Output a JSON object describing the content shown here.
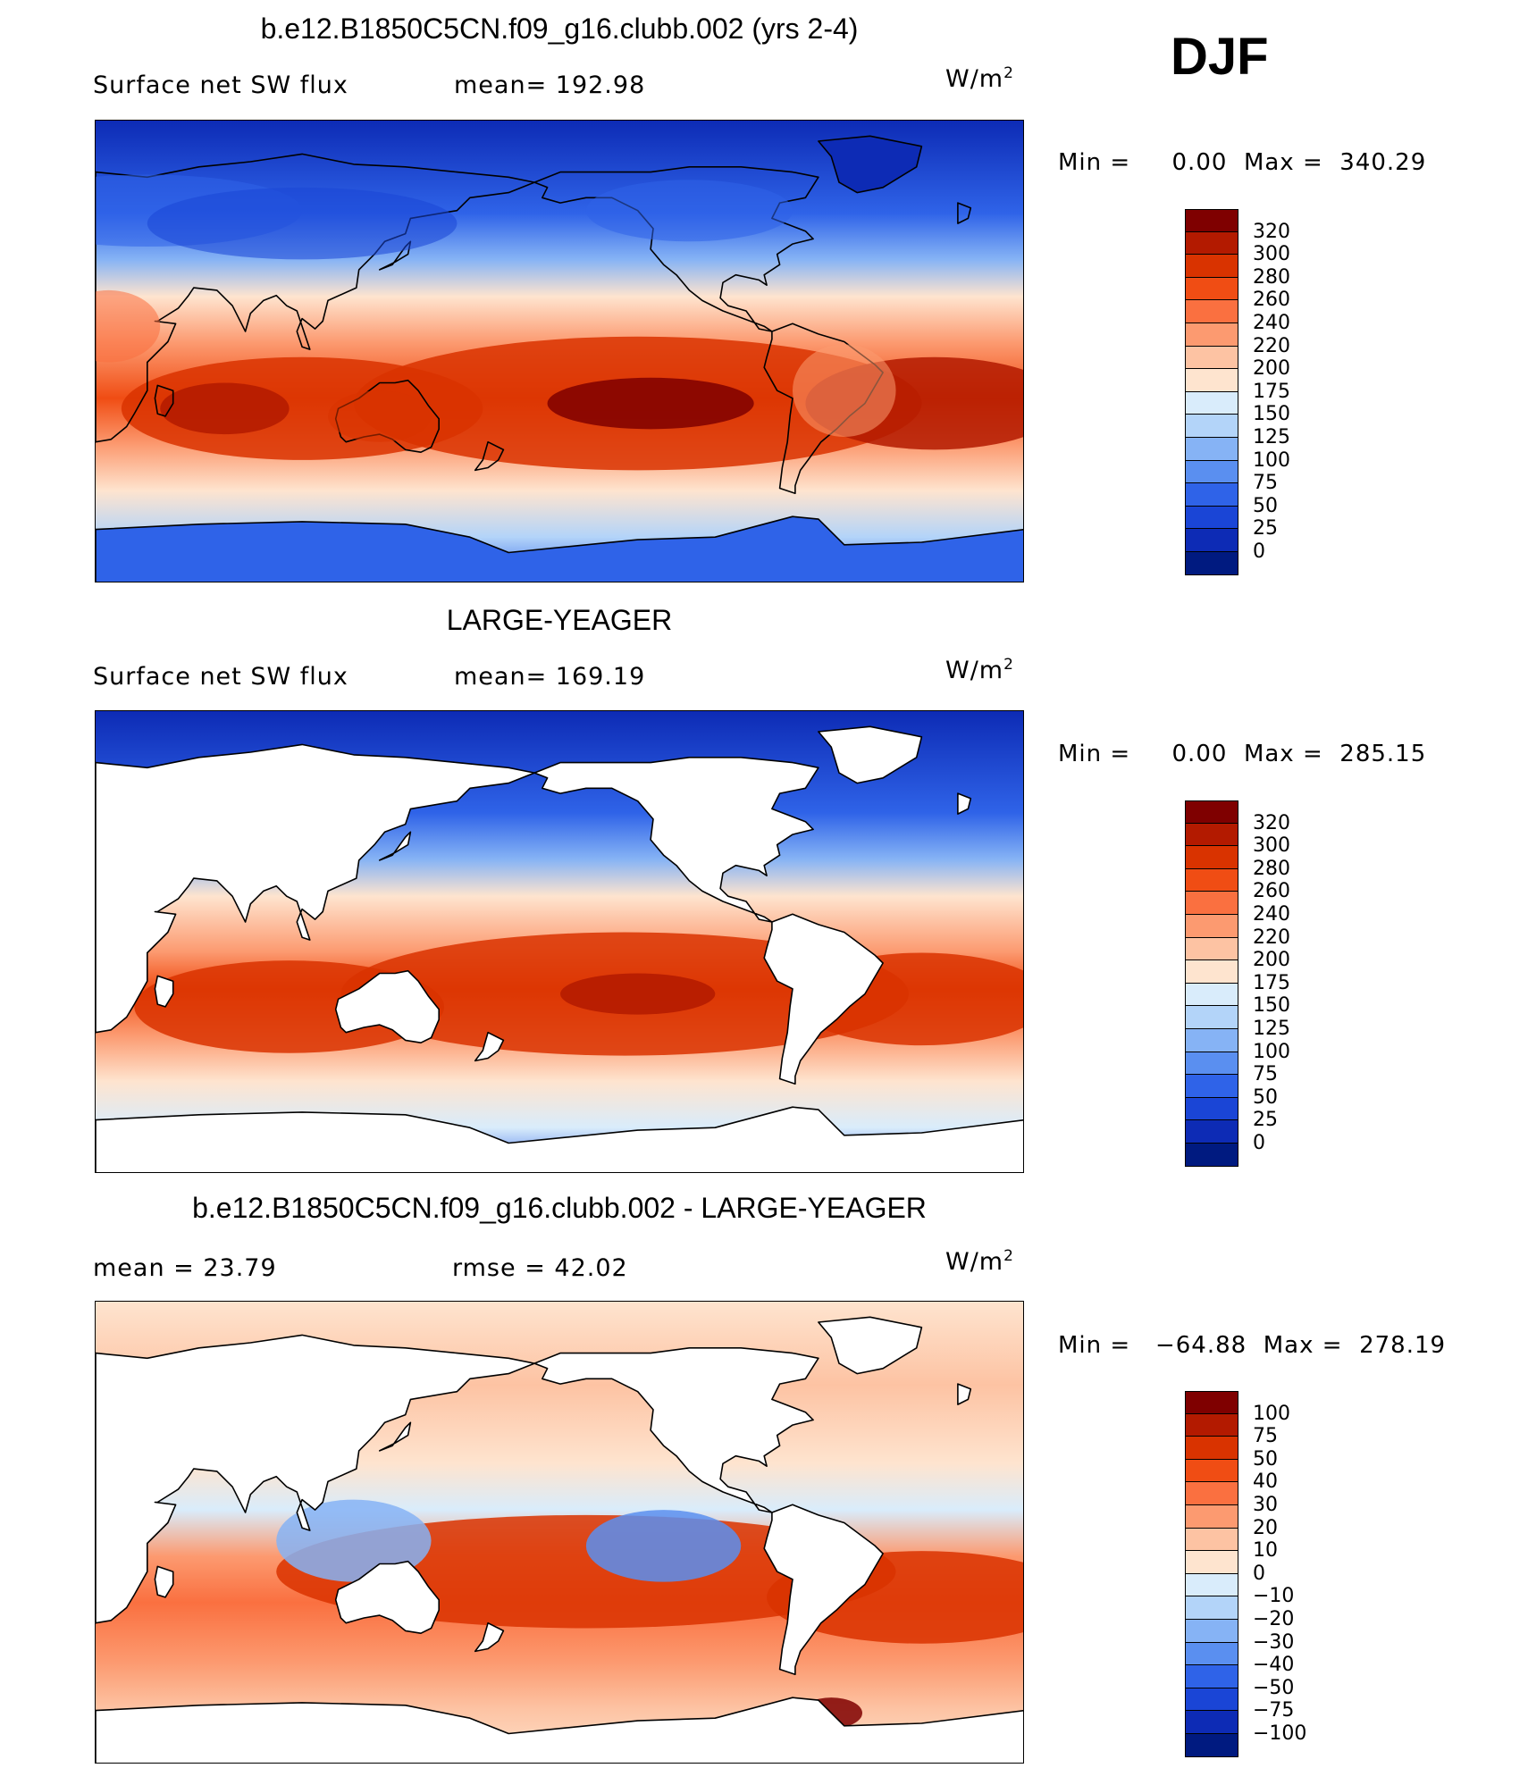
{
  "season": "DJF",
  "panels": [
    {
      "title": "b.e12.B1850C5CN.f09_g16.clubb.002 (yrs 2-4)",
      "left_label": "Surface net SW flux",
      "right_label": "mean= 192.98",
      "units_base": "W/m",
      "units_exp": "2",
      "min_label": "Min =",
      "min_value": "0.00",
      "max_label": "Max =",
      "max_value": "340.29",
      "land_masked": false,
      "colorbar_labels": [
        "320",
        "300",
        "280",
        "260",
        "240",
        "220",
        "200",
        "175",
        "150",
        "125",
        "100",
        "75",
        "50",
        "25",
        "0"
      ],
      "colorbar_colors": [
        "#7f0000",
        "#b31a00",
        "#d93300",
        "#f04d14",
        "#fa7040",
        "#fc9a70",
        "#fdc3a3",
        "#fee4cf",
        "#d9ecfb",
        "#b3d4f9",
        "#86b3f5",
        "#5a8ff0",
        "#2f63e8",
        "#1a45d6",
        "#0d2bb5",
        "#001a80"
      ]
    },
    {
      "title": "LARGE-YEAGER",
      "left_label": "Surface net SW flux",
      "right_label": "mean= 169.19",
      "units_base": "W/m",
      "units_exp": "2",
      "min_label": "Min =",
      "min_value": "0.00",
      "max_label": "Max =",
      "max_value": "285.15",
      "land_masked": true,
      "colorbar_labels": [
        "320",
        "300",
        "280",
        "260",
        "240",
        "220",
        "200",
        "175",
        "150",
        "125",
        "100",
        "75",
        "50",
        "25",
        "0"
      ],
      "colorbar_colors": [
        "#7f0000",
        "#b31a00",
        "#d93300",
        "#f04d14",
        "#fa7040",
        "#fc9a70",
        "#fdc3a3",
        "#fee4cf",
        "#d9ecfb",
        "#b3d4f9",
        "#86b3f5",
        "#5a8ff0",
        "#2f63e8",
        "#1a45d6",
        "#0d2bb5",
        "#001a80"
      ]
    },
    {
      "title": "b.e12.B1850C5CN.f09_g16.clubb.002 - LARGE-YEAGER",
      "left_label": "mean =   23.79",
      "right_label": "rmse =   42.02",
      "units_base": "W/m",
      "units_exp": "2",
      "min_label": "Min =",
      "min_value": "−64.88",
      "max_label": "Max =",
      "max_value": "278.19",
      "land_masked": true,
      "colorbar_labels": [
        "100",
        "75",
        "50",
        "40",
        "30",
        "20",
        "10",
        "0",
        "−10",
        "−20",
        "−30",
        "−40",
        "−50",
        "−75",
        "−100"
      ],
      "colorbar_colors": [
        "#7f0000",
        "#b31a00",
        "#d93300",
        "#f04d14",
        "#fa7040",
        "#fc9a70",
        "#fdc3a3",
        "#fee4cf",
        "#d9ecfb",
        "#b3d4f9",
        "#86b3f5",
        "#5a8ff0",
        "#2f63e8",
        "#1a45d6",
        "#0d2bb5",
        "#001a80"
      ]
    }
  ],
  "fill_colors": {
    "ocean_north": "#0d2bb5",
    "ocean_north_mid": "#2f63e8",
    "ocean_subpolar": "#86b3f5",
    "ocean_mid": "#fee4cf",
    "ocean_subtropic": "#fc9a70",
    "ocean_tropic": "#f04d14",
    "ocean_max": "#b31a00",
    "antarctic": "#2f63e8",
    "land": "#ffffff",
    "coast": "#000000"
  }
}
